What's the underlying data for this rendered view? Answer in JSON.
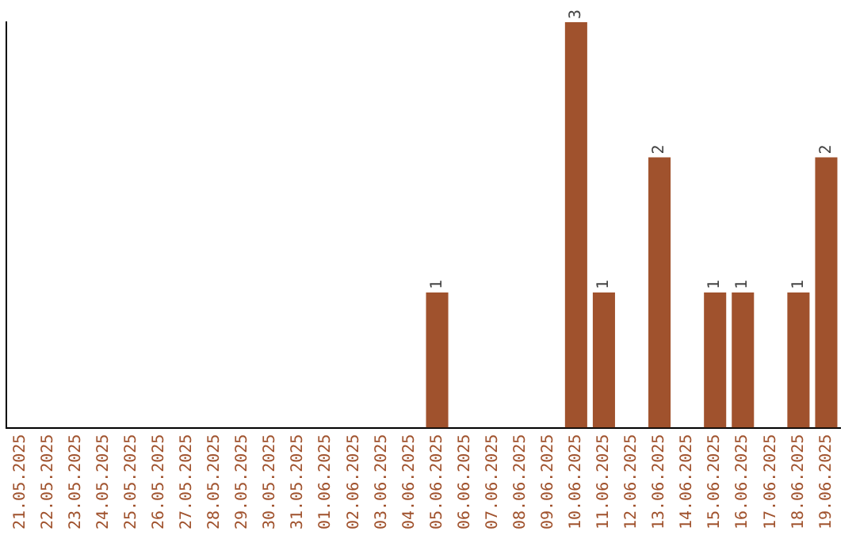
{
  "chart_data": {
    "type": "bar",
    "categories": [
      "21.05.2025",
      "22.05.2025",
      "23.05.2025",
      "24.05.2025",
      "25.05.2025",
      "26.05.2025",
      "27.05.2025",
      "28.05.2025",
      "29.05.2025",
      "30.05.2025",
      "31.05.2025",
      "01.06.2025",
      "02.06.2025",
      "03.06.2025",
      "04.06.2025",
      "05.06.2025",
      "06.06.2025",
      "07.06.2025",
      "08.06.2025",
      "09.06.2025",
      "10.06.2025",
      "11.06.2025",
      "12.06.2025",
      "13.06.2025",
      "14.06.2025",
      "15.06.2025",
      "16.06.2025",
      "17.06.2025",
      "18.06.2025",
      "19.06.2025"
    ],
    "values": [
      null,
      null,
      null,
      null,
      null,
      null,
      null,
      null,
      null,
      null,
      null,
      null,
      null,
      null,
      null,
      1,
      null,
      null,
      null,
      null,
      3,
      1,
      null,
      2,
      null,
      1,
      1,
      null,
      1,
      2
    ],
    "color": "#a0522d",
    "data_labels": true,
    "grid": false,
    "legend": false,
    "tick_labels": "x"
  }
}
